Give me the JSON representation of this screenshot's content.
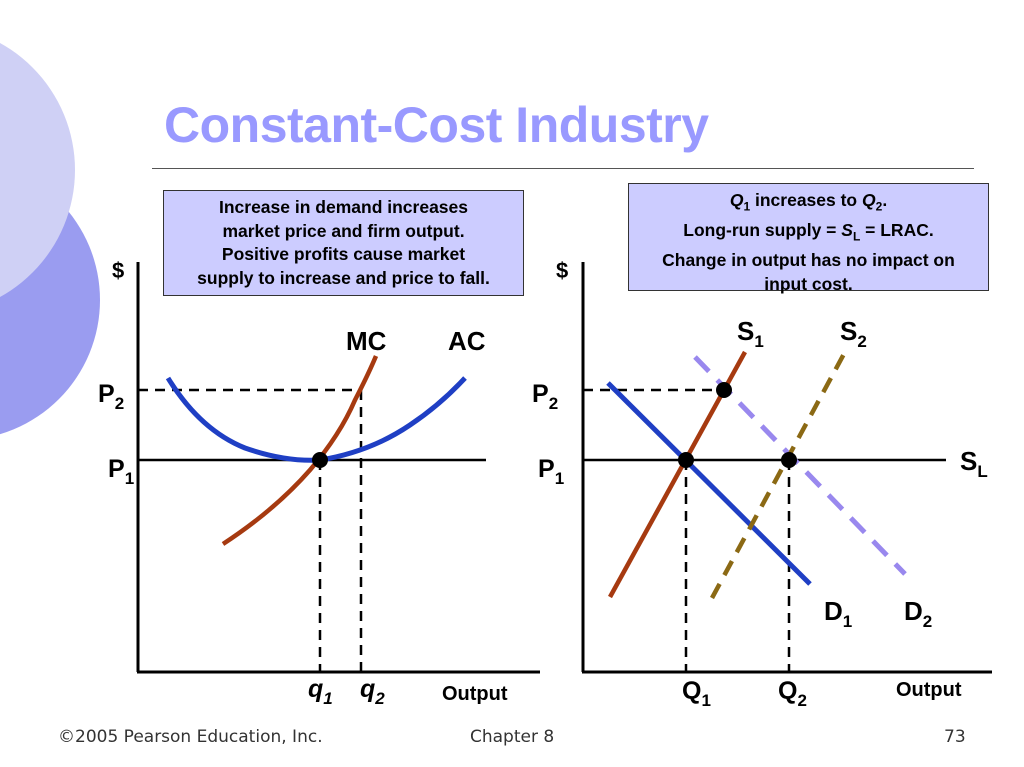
{
  "slide": {
    "title": "Constant-Cost Industry",
    "footer": {
      "copyright": "©2005 Pearson Education, Inc.",
      "chapter": "Chapter 8",
      "page": "73"
    }
  },
  "left_panel": {
    "note_lines": [
      "Increase in demand increases",
      "market price and firm output.",
      "Positive profits cause market",
      "supply to increase and price to fall."
    ],
    "y_axis_label": "$",
    "x_axis_label": "Output",
    "curve_labels": {
      "mc": "MC",
      "ac": "AC"
    },
    "price_labels": {
      "p2": "P",
      "p2_sub": "2",
      "p1": "P",
      "p1_sub": "1"
    },
    "quantity_labels": {
      "q1": "q",
      "q1_sub": "1",
      "q2": "q",
      "q2_sub": "2"
    }
  },
  "right_panel": {
    "note": {
      "line1_q1": "Q",
      "line1_q1_sub": "1",
      "line1_mid": " increases to ",
      "line1_q2": "Q",
      "line1_q2_sub": "2",
      "line1_end": ".",
      "line2_start": "Long-run supply = ",
      "line2_s": "S",
      "line2_s_sub": "L",
      "line2_end": " = LRAC.",
      "line3": "Change in output has no impact on",
      "line4": "input cost."
    },
    "y_axis_label": "$",
    "x_axis_label": "Output",
    "curve_labels": {
      "s1": "S",
      "s1_sub": "1",
      "s2": "S",
      "s2_sub": "2",
      "sl": "S",
      "sl_sub": "L",
      "d1": "D",
      "d1_sub": "1",
      "d2": "D",
      "d2_sub": "2"
    },
    "price_labels": {
      "p2": "P",
      "p2_sub": "2",
      "p1": "P",
      "p1_sub": "1"
    },
    "quantity_labels": {
      "q1": "Q",
      "q1_sub": "1",
      "q2": "Q",
      "q2_sub": "2"
    }
  },
  "colors": {
    "title": "#9999ff",
    "note_box": "#ccccff",
    "mc_curve": "#a63a10",
    "ac_curve": "#1f3fc4",
    "s1_curve": "#a63a10",
    "s2_curve": "#8b6914",
    "d1_curve": "#1f3fc4",
    "d2_curve": "#9988ee",
    "decoration_light": "#cfd0f5",
    "decoration_dark": "#9a9cf0"
  }
}
